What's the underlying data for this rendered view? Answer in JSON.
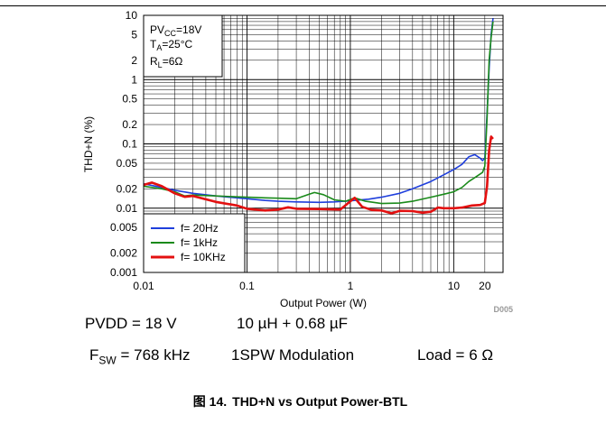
{
  "chart_data": {
    "type": "line",
    "xscale": "log",
    "yscale": "log",
    "xlim": [
      0.01,
      30
    ],
    "ylim": [
      0.001,
      10
    ],
    "xlabel": "Output Power (W)",
    "ylabel": "THD+N (%)",
    "x_ticks": [
      {
        "v": 0.01,
        "label": "0.01"
      },
      {
        "v": 0.1,
        "label": "0.1"
      },
      {
        "v": 1,
        "label": "1"
      },
      {
        "v": 10,
        "label": "10"
      },
      {
        "v": 20,
        "label": "20"
      }
    ],
    "y_ticks": [
      {
        "v": 0.001,
        "label": "0.001"
      },
      {
        "v": 0.002,
        "label": "0.002"
      },
      {
        "v": 0.005,
        "label": "0.005"
      },
      {
        "v": 0.01,
        "label": "0.01"
      },
      {
        "v": 0.02,
        "label": "0.02"
      },
      {
        "v": 0.05,
        "label": "0.05"
      },
      {
        "v": 0.1,
        "label": "0.1"
      },
      {
        "v": 0.2,
        "label": "0.2"
      },
      {
        "v": 0.5,
        "label": "0.5"
      },
      {
        "v": 1,
        "label": "1"
      },
      {
        "v": 2,
        "label": "2"
      },
      {
        "v": 5,
        "label": "5"
      },
      {
        "v": 10,
        "label": "10"
      }
    ],
    "grid": true,
    "legend_position": "bottom-left",
    "conditions_box": {
      "pvcc": "PV",
      "pvcc_sub": "CC",
      "pvcc_val": "=18V",
      "ta": "T",
      "ta_sub": "A",
      "ta_val": "=25°C",
      "rl": "R",
      "rl_sub": "L",
      "rl_val": "=6Ω"
    },
    "code_label": "D005",
    "series": [
      {
        "name": "f= 20Hz",
        "color": "#1f3fdc",
        "width": 1.6,
        "points": [
          [
            0.01,
            0.024
          ],
          [
            0.015,
            0.021
          ],
          [
            0.02,
            0.019
          ],
          [
            0.03,
            0.017
          ],
          [
            0.05,
            0.0155
          ],
          [
            0.08,
            0.0145
          ],
          [
            0.1,
            0.014
          ],
          [
            0.15,
            0.0132
          ],
          [
            0.2,
            0.0128
          ],
          [
            0.3,
            0.0125
          ],
          [
            0.5,
            0.0123
          ],
          [
            0.7,
            0.0125
          ],
          [
            1,
            0.013
          ],
          [
            1.5,
            0.0138
          ],
          [
            2,
            0.0148
          ],
          [
            3,
            0.017
          ],
          [
            4,
            0.02
          ],
          [
            6,
            0.026
          ],
          [
            8,
            0.033
          ],
          [
            10,
            0.04
          ],
          [
            12,
            0.048
          ],
          [
            14,
            0.063
          ],
          [
            16,
            0.068
          ],
          [
            18,
            0.06
          ],
          [
            19,
            0.055
          ],
          [
            20,
            0.06
          ],
          [
            21,
            0.3
          ],
          [
            22,
            1.5
          ],
          [
            23,
            5
          ],
          [
            24,
            9
          ]
        ]
      },
      {
        "name": "f= 1kHz",
        "color": "#1a8a1a",
        "width": 1.6,
        "points": [
          [
            0.01,
            0.022
          ],
          [
            0.015,
            0.02
          ],
          [
            0.02,
            0.018
          ],
          [
            0.025,
            0.0155
          ],
          [
            0.03,
            0.016
          ],
          [
            0.05,
            0.0155
          ],
          [
            0.08,
            0.015
          ],
          [
            0.1,
            0.0148
          ],
          [
            0.15,
            0.0145
          ],
          [
            0.2,
            0.0143
          ],
          [
            0.3,
            0.014
          ],
          [
            0.4,
            0.0165
          ],
          [
            0.45,
            0.0175
          ],
          [
            0.55,
            0.0162
          ],
          [
            0.7,
            0.0135
          ],
          [
            0.9,
            0.0128
          ],
          [
            1.1,
            0.0145
          ],
          [
            1.4,
            0.0128
          ],
          [
            2,
            0.0118
          ],
          [
            3,
            0.012
          ],
          [
            4,
            0.0128
          ],
          [
            6,
            0.0148
          ],
          [
            8,
            0.0165
          ],
          [
            10,
            0.018
          ],
          [
            12,
            0.021
          ],
          [
            14,
            0.026
          ],
          [
            16,
            0.03
          ],
          [
            18,
            0.034
          ],
          [
            19,
            0.036
          ],
          [
            20,
            0.045
          ],
          [
            21,
            0.25
          ],
          [
            22,
            2
          ],
          [
            23,
            4.5
          ],
          [
            24,
            8
          ]
        ]
      },
      {
        "name": "f= 10KHz",
        "color": "#e31010",
        "width": 2.6,
        "points": [
          [
            0.01,
            0.023
          ],
          [
            0.012,
            0.025
          ],
          [
            0.015,
            0.022
          ],
          [
            0.02,
            0.017
          ],
          [
            0.025,
            0.015
          ],
          [
            0.03,
            0.0155
          ],
          [
            0.05,
            0.0125
          ],
          [
            0.08,
            0.011
          ],
          [
            0.1,
            0.0098
          ],
          [
            0.15,
            0.0092
          ],
          [
            0.2,
            0.0095
          ],
          [
            0.25,
            0.0103
          ],
          [
            0.3,
            0.0098
          ],
          [
            0.5,
            0.0097
          ],
          [
            0.8,
            0.0095
          ],
          [
            1.1,
            0.0145
          ],
          [
            1.3,
            0.0105
          ],
          [
            1.6,
            0.0094
          ],
          [
            2,
            0.0092
          ],
          [
            2.5,
            0.0083
          ],
          [
            3,
            0.0091
          ],
          [
            4,
            0.009
          ],
          [
            5,
            0.0085
          ],
          [
            6,
            0.0088
          ],
          [
            7,
            0.0102
          ],
          [
            8,
            0.01
          ],
          [
            10,
            0.01
          ],
          [
            12,
            0.0102
          ],
          [
            15,
            0.011
          ],
          [
            18,
            0.0112
          ],
          [
            20,
            0.012
          ],
          [
            21,
            0.022
          ],
          [
            22,
            0.08
          ],
          [
            23,
            0.13
          ],
          [
            24,
            0.12
          ]
        ]
      }
    ]
  },
  "conditions": {
    "pvdd": "PVDD = 18 V",
    "filter": "10 µH + 0.68 µF",
    "fsw_f": "F",
    "fsw_sub": "SW",
    "fsw_val": " = 768 kHz",
    "modulation": "1SPW Modulation",
    "load": "Load = 6 Ω"
  },
  "caption": {
    "prefix": "图 14.",
    "text": "THD+N vs Output Power-BTL"
  }
}
